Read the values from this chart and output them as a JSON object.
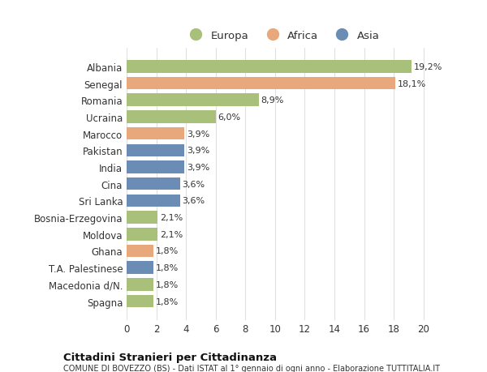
{
  "countries": [
    "Albania",
    "Senegal",
    "Romania",
    "Ucraina",
    "Marocco",
    "Pakistan",
    "India",
    "Cina",
    "Sri Lanka",
    "Bosnia-Erzegovina",
    "Moldova",
    "Ghana",
    "T.A. Palestinese",
    "Macedonia d/N.",
    "Spagna"
  ],
  "values": [
    19.2,
    18.1,
    8.9,
    6.0,
    3.9,
    3.9,
    3.9,
    3.6,
    3.6,
    2.1,
    2.1,
    1.8,
    1.8,
    1.8,
    1.8
  ],
  "labels": [
    "19,2%",
    "18,1%",
    "8,9%",
    "6,0%",
    "3,9%",
    "3,9%",
    "3,9%",
    "3,6%",
    "3,6%",
    "2,1%",
    "2,1%",
    "1,8%",
    "1,8%",
    "1,8%",
    "1,8%"
  ],
  "continents": [
    "Europa",
    "Africa",
    "Europa",
    "Europa",
    "Africa",
    "Asia",
    "Asia",
    "Asia",
    "Asia",
    "Europa",
    "Europa",
    "Africa",
    "Asia",
    "Europa",
    "Europa"
  ],
  "colors": {
    "Europa": "#a8c07a",
    "Africa": "#e8a87c",
    "Asia": "#6b8db5"
  },
  "legend_labels": [
    "Europa",
    "Africa",
    "Asia"
  ],
  "legend_colors": [
    "#a8c07a",
    "#e8a87c",
    "#6b8db5"
  ],
  "xlim": [
    0,
    21
  ],
  "xticks": [
    0,
    2,
    4,
    6,
    8,
    10,
    12,
    14,
    16,
    18,
    20
  ],
  "title": "Cittadini Stranieri per Cittadinanza",
  "subtitle": "COMUNE DI BOVEZZO (BS) - Dati ISTAT al 1° gennaio di ogni anno - Elaborazione TUTTITALIA.IT",
  "bg_color": "#ffffff",
  "bar_height": 0.75,
  "grid_color": "#e0e0e0",
  "text_color": "#333333",
  "label_fontsize": 8.0,
  "tick_fontsize": 8.5
}
